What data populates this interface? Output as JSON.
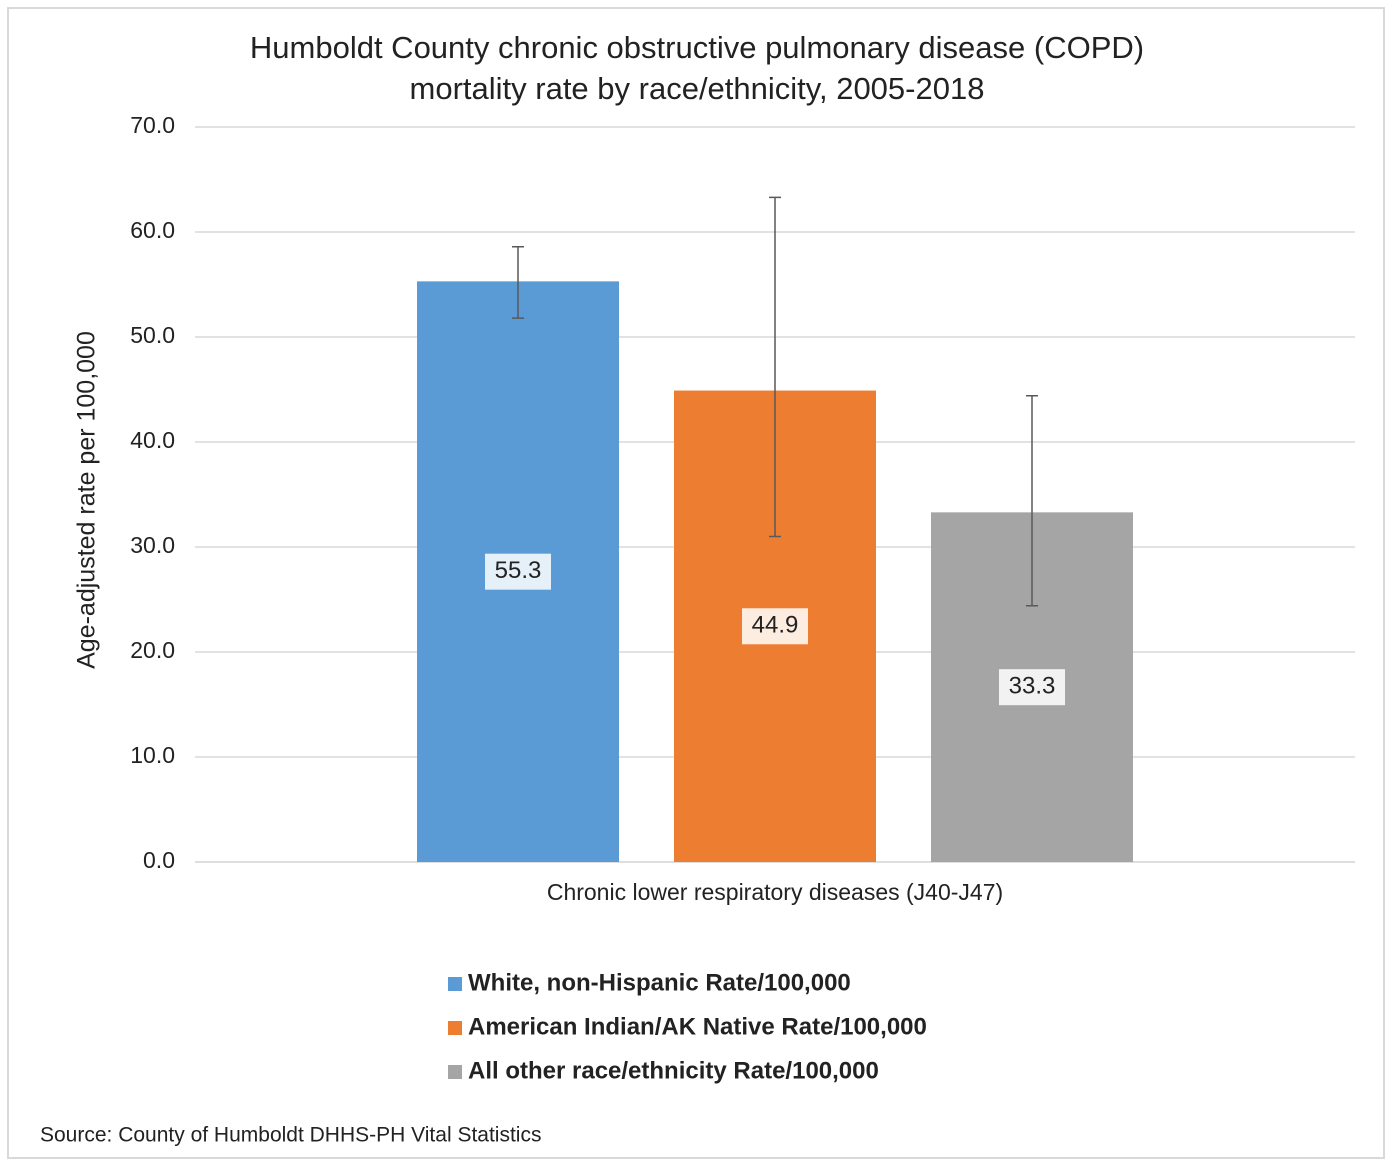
{
  "chart_data": {
    "type": "bar",
    "title": [
      "Humboldt County chronic obstructive pulmonary disease (COPD)",
      "mortality rate by race/ethnicity, 2005-2018"
    ],
    "y_label": "Age-adjusted rate per 100,000",
    "categories": [
      "Chronic lower respiratory diseases (J40-J47)"
    ],
    "series": [
      {
        "name": "White, non-Hispanic Rate/100,000",
        "color": "#5b9bd5",
        "values": [
          55.3
        ],
        "ci_low": [
          51.8
        ],
        "ci_high": [
          58.6
        ]
      },
      {
        "name": "American Indian/AK Native Rate/100,000",
        "color": "#ed7d31",
        "values": [
          44.9
        ],
        "ci_low": [
          31.0
        ],
        "ci_high": [
          63.3
        ]
      },
      {
        "name": "All other race/ethnicity Rate/100,000",
        "color": "#a5a5a5",
        "values": [
          33.3
        ],
        "ci_low": [
          24.4
        ],
        "ci_high": [
          44.4
        ]
      }
    ],
    "ylim": [
      0,
      70
    ],
    "yticks": [
      {
        "value": 0,
        "label": "0.0"
      },
      {
        "value": 10,
        "label": "10.0"
      },
      {
        "value": 20,
        "label": "20.0"
      },
      {
        "value": 30,
        "label": "30.0"
      },
      {
        "value": 40,
        "label": "40.0"
      },
      {
        "value": 50,
        "label": "50.0"
      },
      {
        "value": 60,
        "label": "60.0"
      },
      {
        "value": 70,
        "label": "70.0"
      }
    ],
    "grid": true,
    "legend": "bottom",
    "source": "Source:  County of Humboldt  DHHS-PH Vital Statistics"
  }
}
